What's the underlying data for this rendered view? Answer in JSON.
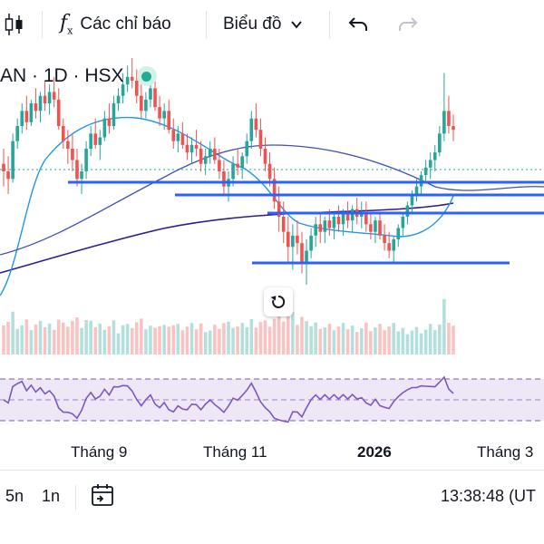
{
  "toolbar": {
    "indicators_label": "Các chỉ báo",
    "charts_label": "Biểu đồ"
  },
  "legend": {
    "symbol_text": "AN · 1D · HSX"
  },
  "x_axis": {
    "labels": [
      "Tháng 9",
      "Tháng 11",
      "2026",
      "Tháng 3"
    ]
  },
  "bottom_bar": {
    "range_5n": "5n",
    "range_1n": "1n",
    "time": "13:38:48 (UT"
  },
  "colors": {
    "up": "#26a69a",
    "down": "#ef5350",
    "trendline": "#2962ff",
    "ma_fast": "#2196f3",
    "ma_slow": "#311b92",
    "rsi": "#7e57c2",
    "accent_dot": "#22ab94"
  },
  "chart_data": {
    "type": "candlestick",
    "symbol": "AN · 1D · HSX",
    "x_labels": [
      "Tháng 9",
      "Tháng 11",
      "2026",
      "Tháng 3"
    ],
    "price_series_ohlc_relative": [
      [
        76,
        80,
        70,
        74
      ],
      [
        74,
        78,
        68,
        72
      ],
      [
        72,
        84,
        71,
        82
      ],
      [
        82,
        88,
        80,
        86
      ],
      [
        86,
        92,
        84,
        90
      ],
      [
        90,
        94,
        85,
        87
      ],
      [
        87,
        93,
        86,
        92
      ],
      [
        92,
        96,
        88,
        90
      ],
      [
        90,
        95,
        87,
        94
      ],
      [
        94,
        98,
        90,
        92
      ],
      [
        92,
        97,
        89,
        95
      ],
      [
        95,
        99,
        91,
        93
      ],
      [
        93,
        96,
        85,
        86
      ],
      [
        86,
        88,
        80,
        82
      ],
      [
        82,
        85,
        76,
        80
      ],
      [
        80,
        84,
        74,
        77
      ],
      [
        77,
        80,
        70,
        72
      ],
      [
        72,
        76,
        68,
        74
      ],
      [
        74,
        82,
        72,
        80
      ],
      [
        80,
        86,
        78,
        84
      ],
      [
        84,
        88,
        80,
        81
      ],
      [
        81,
        85,
        77,
        83
      ],
      [
        83,
        90,
        82,
        88
      ],
      [
        88,
        92,
        84,
        86
      ],
      [
        86,
        94,
        85,
        92
      ],
      [
        92,
        96,
        90,
        94
      ],
      [
        94,
        100,
        92,
        97
      ],
      [
        97,
        102,
        95,
        99
      ],
      [
        99,
        104,
        96,
        98
      ],
      [
        98,
        101,
        92,
        94
      ],
      [
        94,
        97,
        88,
        90
      ],
      [
        90,
        95,
        88,
        93
      ],
      [
        93,
        98,
        91,
        96
      ],
      [
        96,
        99,
        90,
        91
      ],
      [
        91,
        94,
        86,
        88
      ],
      [
        88,
        92,
        85,
        90
      ],
      [
        90,
        93,
        84,
        85
      ],
      [
        85,
        88,
        80,
        82
      ],
      [
        82,
        86,
        79,
        84
      ],
      [
        84,
        87,
        80,
        81
      ],
      [
        81,
        84,
        77,
        79
      ],
      [
        79,
        83,
        76,
        81
      ],
      [
        81,
        85,
        78,
        80
      ],
      [
        80,
        82,
        74,
        76
      ],
      [
        76,
        80,
        73,
        78
      ],
      [
        78,
        82,
        76,
        80
      ],
      [
        80,
        83,
        76,
        77
      ],
      [
        77,
        80,
        72,
        74
      ],
      [
        74,
        77,
        68,
        70
      ],
      [
        70,
        74,
        66,
        72
      ],
      [
        72,
        78,
        70,
        76
      ],
      [
        76,
        80,
        73,
        75
      ],
      [
        75,
        79,
        72,
        78
      ],
      [
        78,
        84,
        76,
        82
      ],
      [
        82,
        90,
        80,
        88
      ],
      [
        88,
        92,
        83,
        85
      ],
      [
        85,
        88,
        78,
        80
      ],
      [
        80,
        83,
        74,
        76
      ],
      [
        76,
        79,
        70,
        72
      ],
      [
        72,
        75,
        64,
        66
      ],
      [
        66,
        70,
        58,
        62
      ],
      [
        62,
        66,
        55,
        58
      ],
      [
        58,
        62,
        50,
        54
      ],
      [
        54,
        60,
        48,
        57
      ],
      [
        57,
        61,
        52,
        55
      ],
      [
        55,
        58,
        47,
        50
      ],
      [
        50,
        56,
        44,
        53
      ],
      [
        53,
        59,
        51,
        57
      ],
      [
        57,
        62,
        54,
        60
      ],
      [
        60,
        63,
        55,
        58
      ],
      [
        58,
        62,
        55,
        61
      ],
      [
        61,
        64,
        57,
        59
      ],
      [
        59,
        63,
        56,
        62
      ],
      [
        62,
        65,
        58,
        60
      ],
      [
        60,
        64,
        57,
        63
      ],
      [
        63,
        66,
        59,
        61
      ],
      [
        61,
        65,
        58,
        64
      ],
      [
        64,
        67,
        60,
        62
      ],
      [
        62,
        66,
        59,
        63
      ],
      [
        63,
        66,
        58,
        60
      ],
      [
        60,
        63,
        56,
        58
      ],
      [
        58,
        62,
        55,
        61
      ],
      [
        61,
        63,
        56,
        57
      ],
      [
        57,
        60,
        53,
        55
      ],
      [
        55,
        58,
        51,
        53
      ],
      [
        53,
        57,
        50,
        56
      ],
      [
        56,
        60,
        54,
        59
      ],
      [
        59,
        63,
        57,
        62
      ],
      [
        62,
        66,
        60,
        65
      ],
      [
        65,
        69,
        63,
        68
      ],
      [
        68,
        72,
        66,
        70
      ],
      [
        70,
        74,
        68,
        73
      ],
      [
        73,
        77,
        71,
        75
      ],
      [
        75,
        79,
        72,
        77
      ],
      [
        77,
        81,
        74,
        79
      ],
      [
        79,
        86,
        78,
        84
      ],
      [
        84,
        100,
        82,
        90
      ],
      [
        90,
        94,
        84,
        86
      ],
      [
        86,
        89,
        82,
        85
      ]
    ],
    "horizontal_lines_count": 5,
    "indicator_panel": {
      "name": "RSI",
      "bands": [
        "upper",
        "middle",
        "lower"
      ]
    }
  }
}
